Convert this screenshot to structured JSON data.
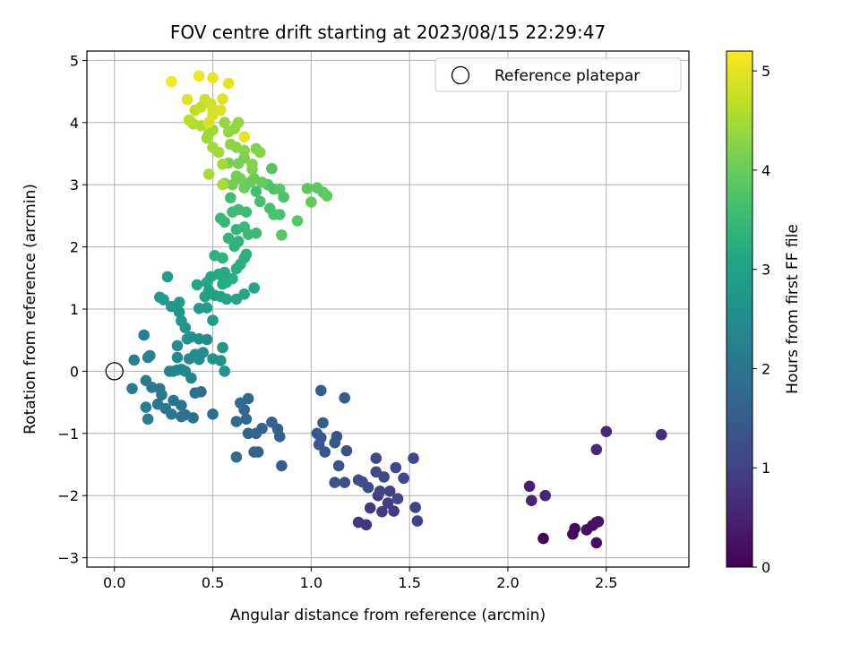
{
  "chart_data": {
    "type": "scatter",
    "title": "FOV centre drift starting at 2023/08/15 22:29:47",
    "xlabel": "Angular distance from reference (arcmin)",
    "ylabel": "Rotation from reference (arcmin)",
    "xlim": [
      -0.14,
      2.92
    ],
    "ylim": [
      -3.15,
      5.15
    ],
    "xticks": [
      0.0,
      0.5,
      1.0,
      1.5,
      2.0,
      2.5
    ],
    "xtick_labels": [
      "0.0",
      "0.5",
      "1.0",
      "1.5",
      "2.0",
      "2.5"
    ],
    "yticks": [
      -3,
      -2,
      -1,
      0,
      1,
      2,
      3,
      4,
      5
    ],
    "ytick_labels": [
      "−3",
      "−2",
      "−1",
      "0",
      "1",
      "2",
      "3",
      "4",
      "5"
    ],
    "grid": true,
    "legend": {
      "position": "top-right",
      "entries": [
        "Reference platepar"
      ]
    },
    "reference_point": {
      "x": 0.0,
      "y": 0.0
    },
    "colorbar": {
      "label": "Hours from first FF file",
      "range": [
        0,
        5.2
      ],
      "ticks": [
        0,
        1,
        2,
        3,
        4,
        5
      ],
      "tick_labels": [
        "0",
        "1",
        "2",
        "3",
        "4",
        "5"
      ],
      "colormap": "viridis"
    },
    "points": [
      [
        2.18,
        -2.69,
        0.05
      ],
      [
        2.33,
        -2.62,
        0.1
      ],
      [
        2.34,
        -2.53,
        0.12
      ],
      [
        2.4,
        -2.55,
        0.15
      ],
      [
        2.43,
        -2.48,
        0.18
      ],
      [
        2.45,
        -2.76,
        0.2
      ],
      [
        2.46,
        -2.42,
        0.22
      ],
      [
        2.45,
        -2.43,
        0.25
      ],
      [
        2.11,
        -1.85,
        0.45
      ],
      [
        2.12,
        -2.08,
        0.5
      ],
      [
        2.19,
        -2.0,
        0.55
      ],
      [
        2.45,
        -1.26,
        0.6
      ],
      [
        2.5,
        -0.97,
        0.62
      ],
      [
        2.78,
        -1.02,
        0.65
      ],
      [
        1.28,
        -2.47,
        0.8
      ],
      [
        1.24,
        -2.43,
        0.82
      ],
      [
        1.3,
        -2.2,
        0.85
      ],
      [
        1.36,
        -2.26,
        0.88
      ],
      [
        1.42,
        -2.25,
        0.9
      ],
      [
        1.39,
        -2.12,
        0.92
      ],
      [
        1.34,
        -2.0,
        0.95
      ],
      [
        1.4,
        -1.93,
        0.97
      ],
      [
        1.53,
        -2.19,
        1.0
      ],
      [
        1.54,
        -2.41,
        1.02
      ],
      [
        1.35,
        -1.93,
        1.05
      ],
      [
        1.44,
        -2.05,
        1.07
      ],
      [
        1.47,
        -1.72,
        1.1
      ],
      [
        1.52,
        -1.4,
        1.12
      ],
      [
        1.43,
        -1.55,
        1.14
      ],
      [
        1.37,
        -1.7,
        1.16
      ],
      [
        1.33,
        -1.62,
        1.18
      ],
      [
        1.33,
        -1.4,
        1.2
      ],
      [
        1.29,
        -1.87,
        1.22
      ],
      [
        1.26,
        -1.78,
        1.24
      ],
      [
        1.24,
        -1.75,
        1.26
      ],
      [
        1.17,
        -1.79,
        1.28
      ],
      [
        1.12,
        -1.79,
        1.3
      ],
      [
        1.14,
        -1.52,
        1.32
      ],
      [
        1.18,
        -1.28,
        1.34
      ],
      [
        1.13,
        -1.05,
        1.36
      ],
      [
        1.12,
        -1.15,
        1.38
      ],
      [
        1.07,
        -1.3,
        1.4
      ],
      [
        1.04,
        -1.18,
        1.42
      ],
      [
        1.05,
        -1.07,
        1.44
      ],
      [
        1.03,
        -1.0,
        1.46
      ],
      [
        1.06,
        -0.83,
        1.48
      ],
      [
        1.17,
        -0.43,
        1.5
      ],
      [
        1.05,
        -0.31,
        1.52
      ],
      [
        0.85,
        -1.52,
        1.55
      ],
      [
        0.84,
        -1.05,
        1.57
      ],
      [
        0.83,
        -0.93,
        1.59
      ],
      [
        0.8,
        -0.82,
        1.61
      ],
      [
        0.75,
        -0.92,
        1.63
      ],
      [
        0.73,
        -1.3,
        1.65
      ],
      [
        0.71,
        -1.3,
        1.67
      ],
      [
        0.72,
        -1.0,
        1.69
      ],
      [
        0.68,
        -1.0,
        1.71
      ],
      [
        0.67,
        -0.77,
        1.73
      ],
      [
        0.66,
        -0.62,
        1.75
      ],
      [
        0.68,
        -0.44,
        1.77
      ],
      [
        0.64,
        -0.51,
        1.79
      ],
      [
        0.62,
        -0.81,
        1.81
      ],
      [
        0.62,
        -1.38,
        1.83
      ],
      [
        0.5,
        -0.69,
        1.85
      ],
      [
        0.44,
        -0.33,
        1.88
      ],
      [
        0.41,
        -0.35,
        1.9
      ],
      [
        0.4,
        -0.75,
        1.92
      ],
      [
        0.36,
        -0.7,
        1.94
      ],
      [
        0.34,
        -0.73,
        1.96
      ],
      [
        0.34,
        -0.55,
        1.98
      ],
      [
        0.3,
        -0.47,
        2.0
      ],
      [
        0.29,
        -0.69,
        2.02
      ],
      [
        0.26,
        -0.6,
        2.04
      ],
      [
        0.24,
        -0.38,
        2.06
      ],
      [
        0.22,
        -0.53,
        2.08
      ],
      [
        0.23,
        -0.28,
        2.1
      ],
      [
        0.19,
        -0.26,
        2.12
      ],
      [
        0.16,
        -0.58,
        2.14
      ],
      [
        0.16,
        -0.15,
        2.16
      ],
      [
        0.17,
        -0.77,
        2.18
      ],
      [
        0.09,
        -0.28,
        2.2
      ],
      [
        0.1,
        0.18,
        2.22
      ],
      [
        0.15,
        0.58,
        2.24
      ],
      [
        0.17,
        0.22,
        2.26
      ],
      [
        0.18,
        0.25,
        2.28
      ],
      [
        0.28,
        0.0,
        2.3
      ],
      [
        0.3,
        0.0,
        2.32
      ],
      [
        0.32,
        0.02,
        2.34
      ],
      [
        0.34,
        0.03,
        2.36
      ],
      [
        0.36,
        0.0,
        2.38
      ],
      [
        0.39,
        -0.11,
        2.4
      ],
      [
        0.38,
        0.2,
        2.42
      ],
      [
        0.32,
        0.22,
        2.44
      ],
      [
        0.32,
        0.41,
        2.46
      ],
      [
        0.41,
        0.27,
        2.48
      ],
      [
        0.43,
        0.19,
        2.5
      ],
      [
        0.45,
        0.3,
        2.52
      ],
      [
        0.47,
        0.51,
        2.54
      ],
      [
        0.43,
        0.52,
        2.56
      ],
      [
        0.39,
        0.55,
        2.58
      ],
      [
        0.37,
        0.52,
        2.6
      ],
      [
        0.5,
        0.2,
        2.62
      ],
      [
        0.54,
        0.17,
        2.64
      ],
      [
        0.56,
        0.0,
        2.66
      ],
      [
        0.55,
        0.38,
        2.68
      ],
      [
        0.36,
        0.7,
        2.7
      ],
      [
        0.34,
        0.81,
        2.72
      ],
      [
        0.33,
        0.95,
        2.74
      ],
      [
        0.33,
        1.11,
        2.76
      ],
      [
        0.29,
        1.04,
        2.78
      ],
      [
        0.25,
        1.15,
        2.8
      ],
      [
        0.23,
        1.19,
        2.82
      ],
      [
        0.27,
        1.52,
        2.84
      ],
      [
        0.43,
        1.01,
        2.86
      ],
      [
        0.47,
        1.02,
        2.88
      ],
      [
        0.5,
        0.82,
        2.9
      ],
      [
        0.46,
        1.2,
        2.92
      ],
      [
        0.48,
        1.3,
        2.94
      ],
      [
        0.51,
        1.22,
        2.96
      ],
      [
        0.54,
        1.2,
        2.98
      ],
      [
        0.57,
        1.16,
        3.0
      ],
      [
        0.62,
        1.16,
        3.02
      ],
      [
        0.66,
        1.24,
        3.04
      ],
      [
        0.71,
        1.34,
        3.06
      ],
      [
        0.42,
        1.39,
        3.08
      ],
      [
        0.47,
        1.43,
        3.1
      ],
      [
        0.49,
        1.52,
        3.12
      ],
      [
        0.53,
        1.56,
        3.14
      ],
      [
        0.56,
        1.59,
        3.16
      ],
      [
        0.57,
        1.43,
        3.18
      ],
      [
        0.55,
        1.4,
        3.2
      ],
      [
        0.6,
        1.49,
        3.22
      ],
      [
        0.62,
        1.65,
        3.24
      ],
      [
        0.64,
        1.72,
        3.26
      ],
      [
        0.66,
        1.82,
        3.28
      ],
      [
        0.67,
        1.88,
        3.3
      ],
      [
        0.51,
        1.86,
        3.32
      ],
      [
        0.55,
        1.82,
        3.34
      ],
      [
        0.61,
        2.01,
        3.36
      ],
      [
        0.63,
        2.09,
        3.38
      ],
      [
        0.62,
        2.28,
        3.4
      ],
      [
        0.58,
        2.14,
        3.42
      ],
      [
        0.56,
        2.4,
        3.44
      ],
      [
        0.54,
        2.46,
        3.46
      ],
      [
        0.68,
        2.2,
        3.48
      ],
      [
        0.72,
        2.22,
        3.5
      ],
      [
        0.66,
        2.32,
        3.52
      ],
      [
        0.6,
        2.56,
        3.54
      ],
      [
        0.63,
        2.6,
        3.56
      ],
      [
        0.67,
        2.56,
        3.58
      ],
      [
        0.59,
        2.79,
        3.6
      ],
      [
        0.72,
        2.89,
        3.62
      ],
      [
        0.74,
        2.73,
        3.64
      ],
      [
        0.79,
        2.62,
        3.66
      ],
      [
        0.81,
        2.52,
        3.68
      ],
      [
        0.84,
        2.52,
        3.7
      ],
      [
        0.86,
        2.8,
        3.72
      ],
      [
        0.81,
        2.93,
        3.74
      ],
      [
        0.78,
        3.0,
        3.76
      ],
      [
        0.8,
        3.26,
        3.78
      ],
      [
        0.84,
        2.93,
        3.8
      ],
      [
        0.85,
        2.19,
        3.82
      ],
      [
        0.93,
        2.42,
        3.84
      ],
      [
        0.98,
        2.94,
        3.86
      ],
      [
        1.03,
        2.95,
        3.88
      ],
      [
        1.06,
        2.88,
        3.9
      ],
      [
        1.08,
        2.82,
        3.92
      ],
      [
        1.0,
        2.72,
        3.94
      ],
      [
        0.75,
        3.04,
        3.96
      ],
      [
        0.71,
        3.1,
        3.98
      ],
      [
        0.69,
        3.04,
        4.0
      ],
      [
        0.66,
        2.95,
        4.02
      ],
      [
        0.64,
        3.1,
        4.04
      ],
      [
        0.62,
        3.14,
        4.06
      ],
      [
        0.6,
        3.0,
        4.08
      ],
      [
        0.56,
        3.02,
        4.1
      ],
      [
        0.58,
        3.35,
        4.12
      ],
      [
        0.63,
        3.34,
        4.14
      ],
      [
        0.66,
        3.43,
        4.16
      ],
      [
        0.7,
        3.25,
        4.18
      ],
      [
        0.72,
        3.58,
        4.2
      ],
      [
        0.74,
        3.52,
        4.22
      ],
      [
        0.7,
        3.33,
        4.24
      ],
      [
        0.66,
        3.55,
        4.26
      ],
      [
        0.62,
        3.6,
        4.28
      ],
      [
        0.59,
        3.65,
        4.3
      ],
      [
        0.58,
        3.85,
        4.32
      ],
      [
        0.61,
        3.9,
        4.34
      ],
      [
        0.63,
        4.0,
        4.36
      ],
      [
        0.56,
        4.0,
        4.38
      ],
      [
        0.5,
        3.88,
        4.4
      ],
      [
        0.48,
        3.82,
        4.42
      ],
      [
        0.47,
        3.75,
        4.44
      ],
      [
        0.5,
        3.6,
        4.46
      ],
      [
        0.53,
        3.52,
        4.48
      ],
      [
        0.55,
        3.33,
        4.5
      ],
      [
        0.48,
        3.17,
        4.52
      ],
      [
        0.55,
        3.0,
        4.54
      ],
      [
        0.44,
        3.95,
        4.58
      ],
      [
        0.4,
        3.98,
        4.62
      ],
      [
        0.38,
        4.04,
        4.66
      ],
      [
        0.41,
        4.2,
        4.7
      ],
      [
        0.44,
        4.25,
        4.74
      ],
      [
        0.46,
        4.37,
        4.78
      ],
      [
        0.49,
        4.3,
        4.82
      ],
      [
        0.5,
        4.2,
        4.86
      ],
      [
        0.48,
        4.0,
        4.88
      ],
      [
        0.5,
        4.12,
        4.9
      ],
      [
        0.54,
        4.2,
        4.92
      ],
      [
        0.55,
        4.38,
        4.94
      ],
      [
        0.37,
        4.37,
        4.96
      ],
      [
        0.66,
        3.77,
        4.98
      ],
      [
        0.58,
        4.63,
        5.0
      ],
      [
        0.5,
        4.72,
        5.04
      ],
      [
        0.43,
        4.75,
        5.08
      ],
      [
        0.29,
        4.66,
        5.12
      ]
    ]
  }
}
